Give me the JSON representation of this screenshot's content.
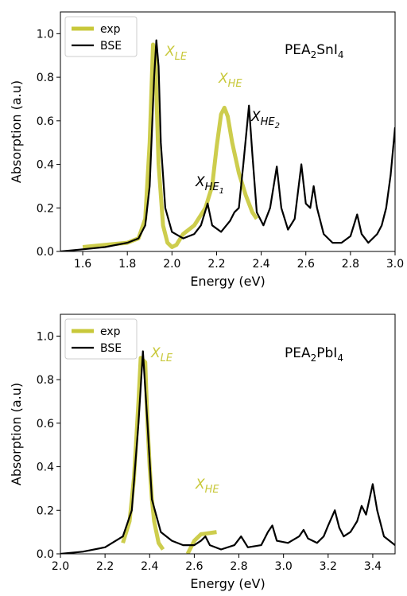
{
  "chart_data": [
    {
      "type": "line",
      "xlabel": "Energy (eV)",
      "ylabel": "Absorption (a.u)",
      "title": [
        "PEA",
        "2",
        "SnI",
        "4"
      ],
      "xlim": [
        1.5,
        3.0
      ],
      "ylim": [
        0,
        1.1
      ],
      "xticks": [
        1.6,
        1.8,
        {
          "value": 2.0,
          "label": "2.0"
        },
        2.2,
        2.4,
        2.6,
        2.8,
        {
          "value": 3.0,
          "label": "3.0"
        }
      ],
      "yticks": [
        {
          "value": 0,
          "label": "0.0"
        },
        0.2,
        0.4,
        0.6,
        0.8,
        {
          "value": 1.0,
          "label": "1.0"
        }
      ],
      "legend": "upper left",
      "series": [
        {
          "name": "exp",
          "color": "#c8c83a",
          "width": 5,
          "x": [
            1.6,
            1.7,
            1.8,
            1.85,
            1.88,
            1.9,
            1.915,
            1.925,
            1.94,
            1.96,
            1.98,
            2.0,
            2.02,
            2.05,
            2.1,
            2.15,
            2.18,
            2.2,
            2.22,
            2.235,
            2.25,
            2.27,
            2.3,
            2.33,
            2.36,
            2.38
          ],
          "values": [
            0.02,
            0.03,
            0.04,
            0.06,
            0.15,
            0.5,
            0.95,
            0.9,
            0.4,
            0.12,
            0.04,
            0.02,
            0.03,
            0.08,
            0.12,
            0.2,
            0.3,
            0.48,
            0.63,
            0.66,
            0.62,
            0.5,
            0.36,
            0.26,
            0.18,
            0.15
          ]
        },
        {
          "name": "BSE",
          "color": "#000000",
          "width": 2.2,
          "x": [
            1.5,
            1.6,
            1.7,
            1.8,
            1.85,
            1.88,
            1.9,
            1.92,
            1.93,
            1.94,
            1.95,
            1.97,
            2.0,
            2.05,
            2.1,
            2.13,
            2.16,
            2.18,
            2.22,
            2.26,
            2.28,
            2.3,
            2.32,
            2.345,
            2.36,
            2.38,
            2.41,
            2.44,
            2.47,
            2.49,
            2.52,
            2.55,
            2.58,
            2.6,
            2.62,
            2.635,
            2.65,
            2.68,
            2.72,
            2.76,
            2.8,
            2.83,
            2.85,
            2.88,
            2.92,
            2.94,
            2.96,
            2.98,
            3.0
          ],
          "values": [
            0.0,
            0.01,
            0.02,
            0.04,
            0.06,
            0.12,
            0.3,
            0.8,
            0.97,
            0.85,
            0.5,
            0.2,
            0.09,
            0.06,
            0.08,
            0.12,
            0.22,
            0.12,
            0.09,
            0.14,
            0.18,
            0.2,
            0.4,
            0.67,
            0.45,
            0.18,
            0.12,
            0.2,
            0.39,
            0.2,
            0.1,
            0.15,
            0.4,
            0.22,
            0.2,
            0.3,
            0.2,
            0.08,
            0.04,
            0.04,
            0.07,
            0.17,
            0.08,
            0.04,
            0.08,
            0.12,
            0.2,
            0.35,
            0.57
          ]
        }
      ],
      "annotations": [
        {
          "parts": [
            "X",
            "LE"
          ],
          "color": "#c8c83a"
        },
        {
          "parts": [
            "X",
            "HE"
          ],
          "color": "#c8c83a"
        },
        {
          "parts": [
            "X",
            "HE",
            "2"
          ],
          "color": "#000000"
        },
        {
          "parts": [
            "X",
            "HE",
            "1"
          ],
          "color": "#000000"
        }
      ]
    },
    {
      "type": "line",
      "xlabel": "Energy (eV)",
      "ylabel": "Absorption (a.u)",
      "title": [
        "PEA",
        "2",
        "PbI",
        "4"
      ],
      "xlim": [
        2.0,
        3.5
      ],
      "ylim": [
        0,
        1.1
      ],
      "xticks": [
        {
          "value": 2.0,
          "label": "2.0"
        },
        2.2,
        2.4,
        2.6,
        2.8,
        {
          "value": 3.0,
          "label": "3.0"
        },
        3.2,
        3.4
      ],
      "yticks": [
        {
          "value": 0,
          "label": "0.0"
        },
        0.2,
        0.4,
        0.6,
        0.8,
        {
          "value": 1.0,
          "label": "1.0"
        }
      ],
      "legend": "upper left",
      "series": [
        {
          "name": "exp",
          "color": "#c8c83a",
          "width": 5,
          "x": [
            2.28,
            2.31,
            2.33,
            2.35,
            2.36,
            2.38,
            2.39,
            2.4,
            2.41,
            2.42,
            2.44,
            2.46,
            2.5,
            2.57,
            2.6,
            2.63,
            2.7
          ],
          "values": [
            0.05,
            0.15,
            0.35,
            0.7,
            0.9,
            0.88,
            0.6,
            0.4,
            0.25,
            0.15,
            0.05,
            0.02,
            null,
            0.0,
            0.06,
            0.09,
            0.1
          ]
        },
        {
          "name": "BSE",
          "color": "#000000",
          "width": 2.2,
          "x": [
            2.0,
            2.1,
            2.2,
            2.28,
            2.32,
            2.35,
            2.37,
            2.39,
            2.41,
            2.45,
            2.5,
            2.55,
            2.6,
            2.63,
            2.65,
            2.67,
            2.72,
            2.78,
            2.81,
            2.84,
            2.9,
            2.93,
            2.95,
            2.97,
            3.02,
            3.07,
            3.09,
            3.11,
            3.15,
            3.18,
            3.2,
            3.23,
            3.25,
            3.27,
            3.3,
            3.33,
            3.35,
            3.37,
            3.4,
            3.42,
            3.45,
            3.5
          ],
          "values": [
            0.0,
            0.01,
            0.03,
            0.08,
            0.2,
            0.6,
            0.93,
            0.6,
            0.25,
            0.1,
            0.06,
            0.04,
            0.04,
            0.06,
            0.08,
            0.04,
            0.02,
            0.04,
            0.08,
            0.03,
            0.04,
            0.1,
            0.13,
            0.06,
            0.05,
            0.08,
            0.11,
            0.07,
            0.05,
            0.08,
            0.13,
            0.2,
            0.12,
            0.08,
            0.1,
            0.15,
            0.22,
            0.18,
            0.32,
            0.2,
            0.08,
            0.04
          ]
        }
      ],
      "annotations": [
        {
          "parts": [
            "X",
            "LE"
          ],
          "color": "#c8c83a"
        },
        {
          "parts": [
            "X",
            "HE"
          ],
          "color": "#c8c83a"
        }
      ]
    }
  ]
}
